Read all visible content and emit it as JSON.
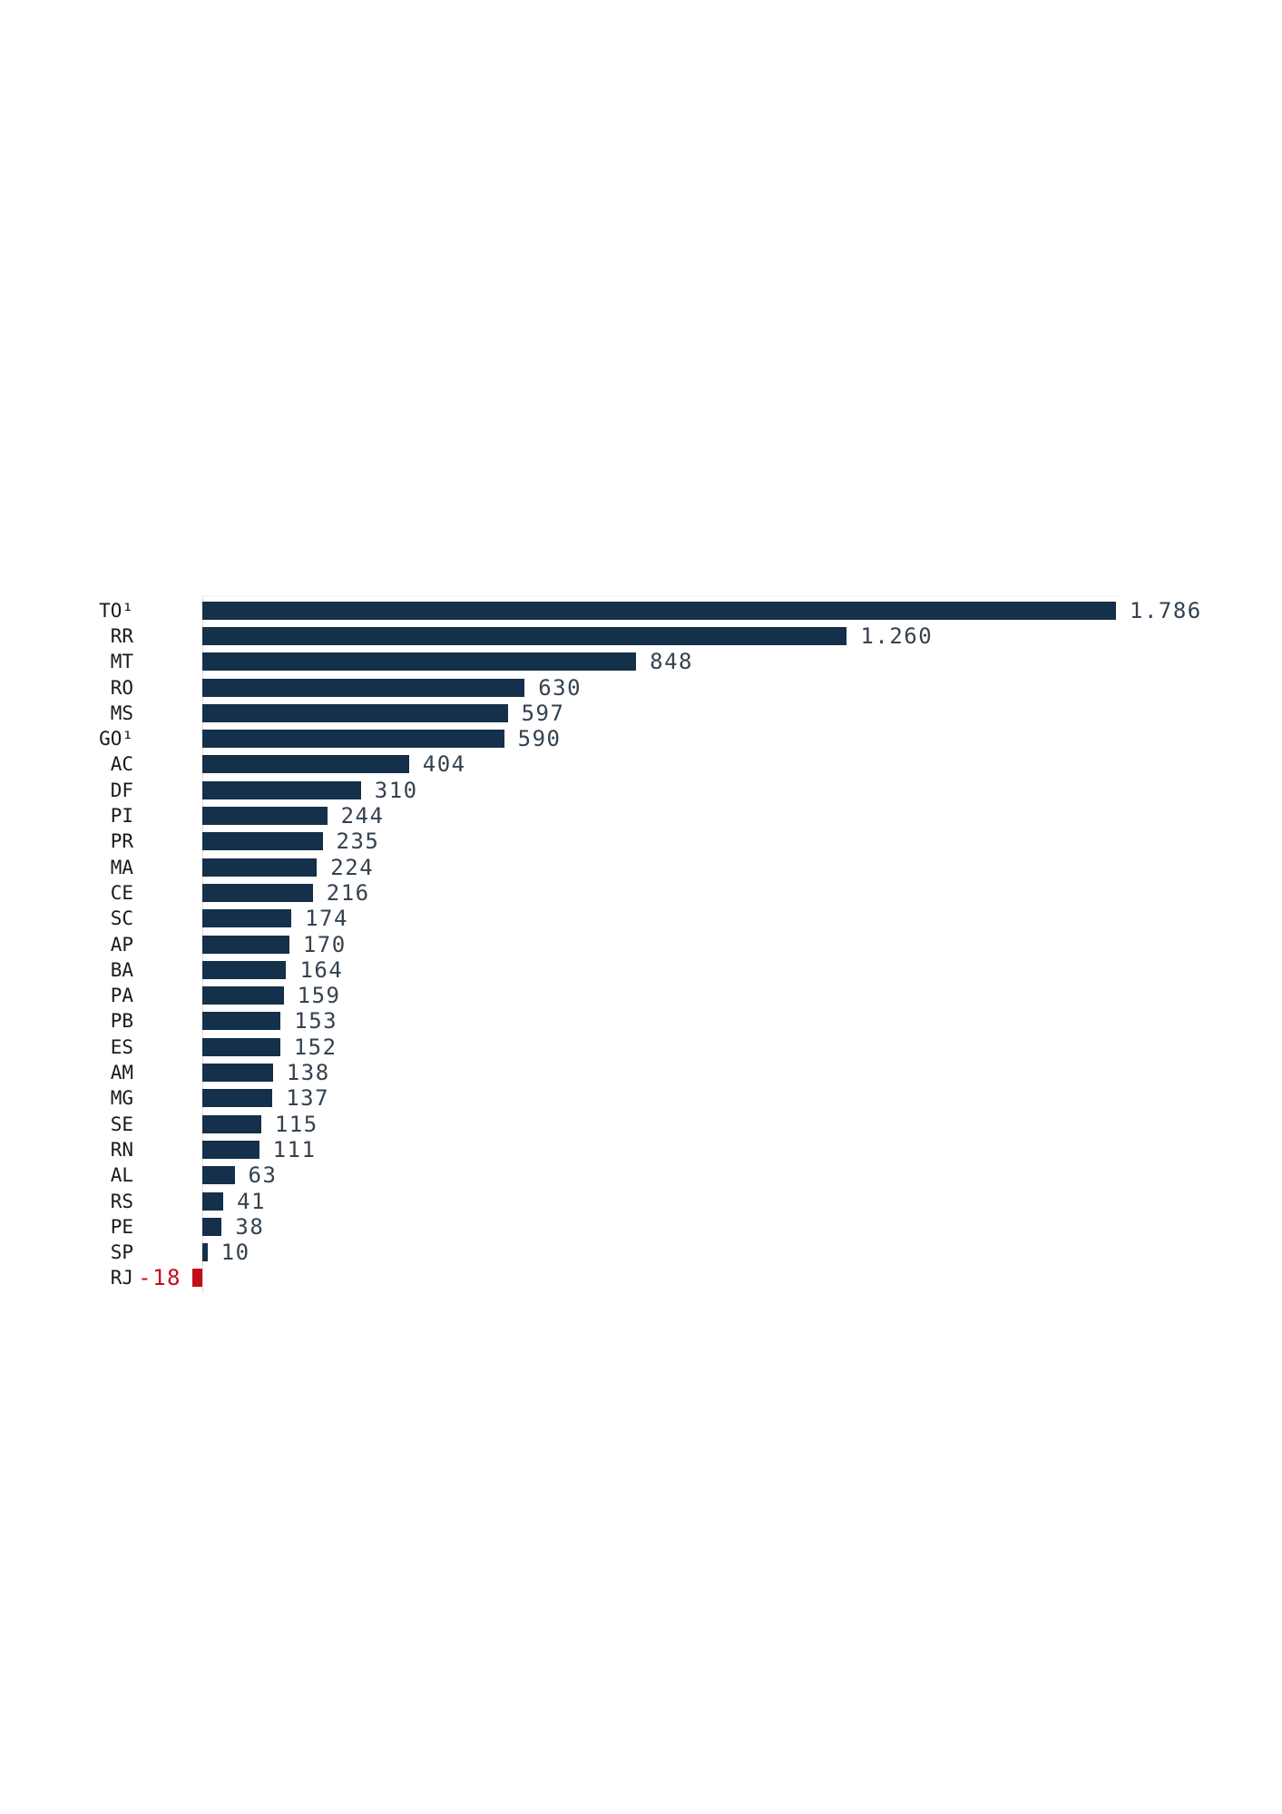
{
  "page": {
    "background": "#ffffff"
  },
  "chart_data": {
    "type": "bar",
    "orientation": "horizontal",
    "title": "",
    "xlabel": "",
    "ylabel": "",
    "grid": false,
    "legend": false,
    "xlim": [
      -18,
      1786
    ],
    "categories": [
      "TO¹",
      "RR",
      "MT",
      "RO",
      "MS",
      "GO¹",
      "AC",
      "DF",
      "PI",
      "PR",
      "MA",
      "CE",
      "SC",
      "AP",
      "BA",
      "PA",
      "PB",
      "ES",
      "AM",
      "MG",
      "SE",
      "RN",
      "AL",
      "RS",
      "PE",
      "SP",
      "RJ"
    ],
    "values": [
      1786,
      1260,
      848,
      630,
      597,
      590,
      404,
      310,
      244,
      235,
      224,
      216,
      174,
      170,
      164,
      159,
      153,
      152,
      138,
      137,
      115,
      111,
      63,
      41,
      38,
      10,
      -18
    ],
    "value_labels": [
      "1.786",
      "1.260",
      "848",
      "630",
      "597",
      "590",
      "404",
      "310",
      "244",
      "235",
      "224",
      "216",
      "174",
      "170",
      "164",
      "159",
      "153",
      "152",
      "138",
      "137",
      "115",
      "111",
      "63",
      "41",
      "38",
      "10",
      "-18"
    ],
    "footnote_marker": "¹",
    "colors": {
      "positive_bar": "#14304a",
      "negative_bar": "#c40d18",
      "value_text": "#344250",
      "negative_value_text": "#c40d18",
      "category_text": "#1a1a1a",
      "axis_line": "#dddddd"
    }
  }
}
